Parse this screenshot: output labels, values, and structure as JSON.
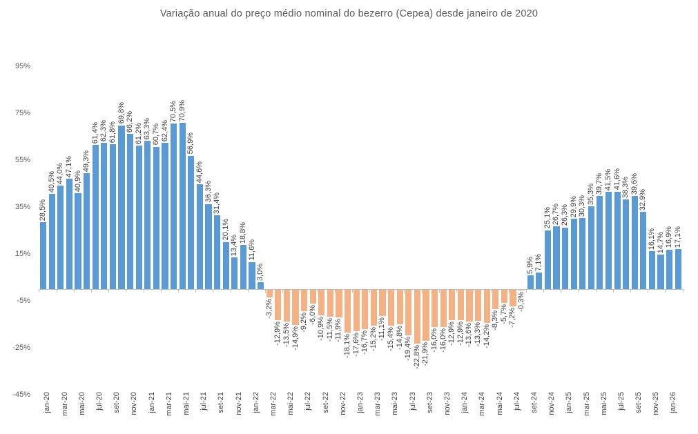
{
  "chart_data": {
    "type": "bar",
    "title": "Variação anual do preço médio nominal do bezerro (Cepea) desde janeiro de 2020",
    "x": [
      "jan-20",
      "fev-20",
      "mar-20",
      "abr-20",
      "mai-20",
      "jun-20",
      "jul-20",
      "ago-20",
      "set-20",
      "out-20",
      "nov-20",
      "dez-20",
      "jan-21",
      "fev-21",
      "mar-21",
      "abr-21",
      "mai-21",
      "jun-21",
      "jul-21",
      "ago-21",
      "set-21",
      "out-21",
      "nov-21",
      "dez-21",
      "jan-22",
      "fev-22",
      "mar-22",
      "abr-22",
      "mai-22",
      "jun-22",
      "jul-22",
      "ago-22",
      "set-22",
      "out-22",
      "nov-22",
      "dez-22",
      "jan-23",
      "fev-23",
      "mar-23",
      "abr-23",
      "mai-23",
      "jun-23",
      "jul-23",
      "ago-23",
      "set-23",
      "out-23",
      "nov-23",
      "dez-23",
      "jan-24",
      "fev-24",
      "mar-24",
      "abr-24",
      "mai-24",
      "jun-24",
      "jul-24",
      "ago-24",
      "set-24",
      "out-24",
      "nov-24",
      "dez-24",
      "jan-25",
      "fev-25",
      "mar-25",
      "abr-25",
      "mai-25",
      "jun-25",
      "jul-25",
      "ago-25",
      "set-25",
      "out-25",
      "nov-25",
      "dez-25",
      "jan-26",
      "fev-26"
    ],
    "values": [
      28.5,
      40.5,
      44.0,
      47.1,
      40.9,
      49.3,
      61.4,
      62.3,
      61.8,
      69.8,
      66.2,
      61.2,
      63.3,
      60.7,
      62.4,
      70.5,
      70.9,
      56.9,
      44.6,
      36.3,
      31.4,
      20.1,
      13.4,
      18.8,
      11.6,
      3.0,
      -3.2,
      -12.9,
      -13.5,
      -14.9,
      -9.2,
      -6.0,
      -10.9,
      -11.5,
      -11.9,
      -18.1,
      -17.6,
      -16.7,
      -15.2,
      -11.1,
      -15.4,
      -14.8,
      -19.4,
      -22.8,
      -21.9,
      -16.0,
      -16.0,
      -12.9,
      -12.9,
      -13.6,
      -13.3,
      -14.2,
      -8.3,
      -5.7,
      -7.2,
      -0.3,
      5.9,
      7.1,
      25.1,
      26.7,
      26.3,
      29.9,
      30.3,
      35.3,
      39.7,
      41.5,
      41.6,
      38.3,
      39.6,
      32.9,
      16.1,
      14.7,
      16.9,
      17.1
    ],
    "data_label_format": "0,0% (pt-BR, comma decimal, 1 decimal place)",
    "y_axis": {
      "tick_labels": [
        "95%",
        "75%",
        "55%",
        "35%",
        "15%",
        "-5%",
        "-25%",
        "-45%"
      ],
      "tick_values": [
        95,
        75,
        55,
        35,
        15,
        -5,
        -25,
        -45
      ],
      "min": -45,
      "max": 95
    },
    "x_axis": {
      "tick_label_interval": 2,
      "first_tick_label": "jan-20",
      "last_tick_label": "jan-26",
      "labels_rotated_degrees": 90
    },
    "colors": {
      "positive_bar": "#5B9BD5",
      "negative_bar": "#F4B183",
      "title_text": "#595959",
      "y_axis_text": "#595959",
      "x_axis_text": "#404040",
      "data_label_text": "#404040",
      "axis_line": "#BFBFBF",
      "background": "#FFFFFF"
    },
    "grid": false,
    "legend": false
  }
}
